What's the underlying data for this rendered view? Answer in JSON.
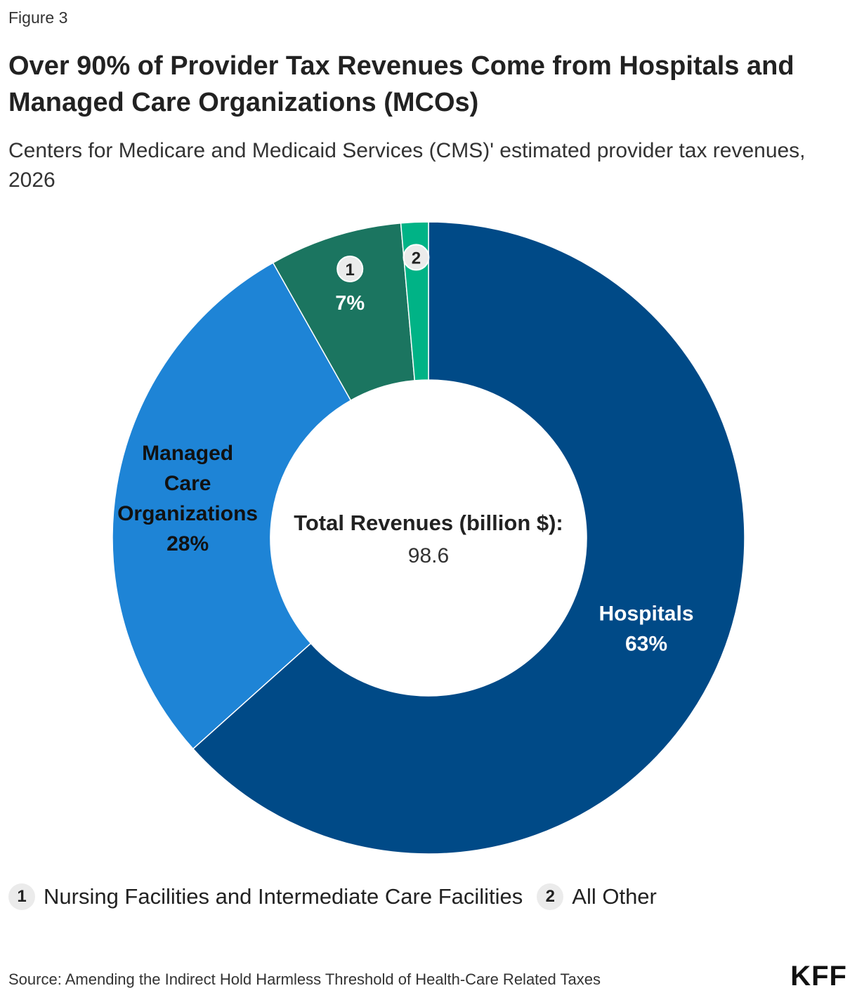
{
  "header": {
    "figure_label": "Figure 3",
    "title": "Over 90% of Provider Tax Revenues Come from Hospitals and Managed Care Organizations (MCOs)",
    "subtitle": "Centers for Medicare and Medicaid Services (CMS)' estimated provider tax revenues, 2026"
  },
  "chart_data": {
    "type": "pie",
    "variant": "donut",
    "slices": [
      {
        "name": "Hospitals",
        "label_lines": [
          "Hospitals"
        ],
        "value": 63.5,
        "display": "63%",
        "color": "#004a87",
        "label_color": "#ffffff"
      },
      {
        "name": "Managed Care Organizations",
        "label_lines": [
          "Managed",
          "Care",
          "Organizations"
        ],
        "value": 28.5,
        "display": "28%",
        "color": "#1e84d6",
        "label_color": "#111111"
      },
      {
        "name": "Nursing Facilities and Intermediate Care Facilities",
        "marker": "1",
        "value": 6.8,
        "display": "7%",
        "color": "#1b7560",
        "label_color": "#ffffff"
      },
      {
        "name": "All Other",
        "marker": "2",
        "value": 1.4,
        "display": "",
        "color": "#00b386",
        "label_color": "#ffffff"
      }
    ],
    "center_label": "Total Revenues (billion $):",
    "center_value": "98.6",
    "legend": [
      {
        "marker": "1",
        "label": "Nursing Facilities and Intermediate Care Facilities"
      },
      {
        "marker": "2",
        "label": "All Other"
      }
    ]
  },
  "footer": {
    "source": "Source: Amending the Indirect Hold Harmless Threshold of Health-Care Related Taxes",
    "logo": "KFF"
  }
}
